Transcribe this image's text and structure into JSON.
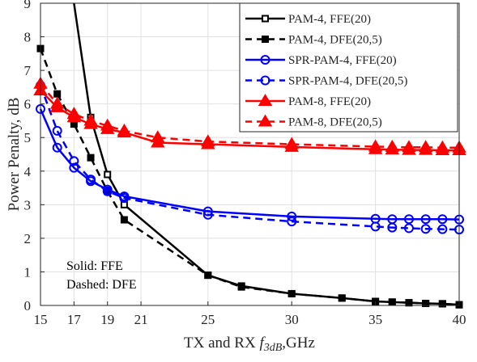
{
  "chart_data": {
    "type": "line",
    "xlabel": "TX and RX f_3dB,GHz",
    "xlabel_parts": {
      "prefix": "TX and RX ",
      "f": "f",
      "sub": "3dB",
      "suffix": ",GHz"
    },
    "ylabel": "Power Penalty, dB",
    "xlim": [
      15,
      40
    ],
    "ylim": [
      0,
      9
    ],
    "x_ticks": [
      15,
      17,
      19,
      21,
      25,
      30,
      35,
      40
    ],
    "y_ticks": [
      0,
      1,
      2,
      3,
      4,
      5,
      6,
      7,
      8,
      9
    ],
    "grid": true,
    "legend_position": "top-right",
    "annotations": [
      "Solid: FFE",
      "Dashed: DFE"
    ],
    "series": [
      {
        "name": "PAM-4, FFE(20)",
        "color": "#000000",
        "dash": "solid",
        "marker": "square",
        "x": [
          17,
          18,
          19,
          20,
          25,
          27,
          30,
          33,
          35,
          36,
          37,
          38,
          39,
          40
        ],
        "y": [
          9.1,
          5.6,
          3.9,
          3.0,
          0.9,
          0.58,
          0.35,
          0.22,
          0.12,
          0.1,
          0.08,
          0.06,
          0.05,
          0.02
        ]
      },
      {
        "name": "PAM-4, DFE(20,5)",
        "color": "#000000",
        "dash": "dashed",
        "marker": "square-filled",
        "x": [
          15,
          16,
          17,
          18,
          19,
          20,
          25,
          27,
          30,
          33,
          35,
          36,
          37,
          38,
          39,
          40
        ],
        "y": [
          7.65,
          6.3,
          5.4,
          4.4,
          3.4,
          2.55,
          0.9,
          0.55,
          0.35,
          0.22,
          0.12,
          0.1,
          0.08,
          0.06,
          0.05,
          0.02
        ]
      },
      {
        "name": "SPR-PAM-4, FFE(20)",
        "color": "#0000ff",
        "dash": "solid",
        "marker": "circle",
        "x": [
          15,
          16,
          17,
          18,
          19,
          20,
          25,
          30,
          35,
          36,
          37,
          38,
          39,
          40
        ],
        "y": [
          5.85,
          4.7,
          4.1,
          3.7,
          3.45,
          3.25,
          2.8,
          2.65,
          2.58,
          2.57,
          2.57,
          2.57,
          2.57,
          2.56
        ]
      },
      {
        "name": "SPR-PAM-4, DFE(20,5)",
        "color": "#0000ff",
        "dash": "dashed",
        "marker": "circle",
        "x": [
          15,
          16,
          17,
          18,
          19,
          20,
          25,
          30,
          35,
          36,
          37,
          38,
          39,
          40
        ],
        "y": [
          6.55,
          5.2,
          4.3,
          3.75,
          3.4,
          3.2,
          2.7,
          2.5,
          2.35,
          2.32,
          2.3,
          2.28,
          2.27,
          2.26
        ]
      },
      {
        "name": "PAM-8, FFE(20)",
        "color": "#ff0000",
        "dash": "solid",
        "marker": "triangle",
        "x": [
          15,
          16,
          17,
          18,
          19,
          20,
          22,
          25,
          30,
          35,
          36,
          37,
          38,
          39,
          40
        ],
        "y": [
          6.4,
          5.9,
          5.6,
          5.4,
          5.25,
          5.15,
          4.85,
          4.8,
          4.72,
          4.65,
          4.64,
          4.63,
          4.63,
          4.62,
          4.62
        ]
      },
      {
        "name": "PAM-8, DFE(20,5)",
        "color": "#ff0000",
        "dash": "dashed",
        "marker": "triangle",
        "x": [
          15,
          16,
          17,
          18,
          19,
          20,
          22,
          25,
          30,
          35,
          36,
          37,
          38,
          39,
          40
        ],
        "y": [
          6.6,
          6.0,
          5.7,
          5.5,
          5.35,
          5.2,
          5.0,
          4.88,
          4.8,
          4.73,
          4.72,
          4.71,
          4.71,
          4.7,
          4.7
        ]
      }
    ]
  }
}
